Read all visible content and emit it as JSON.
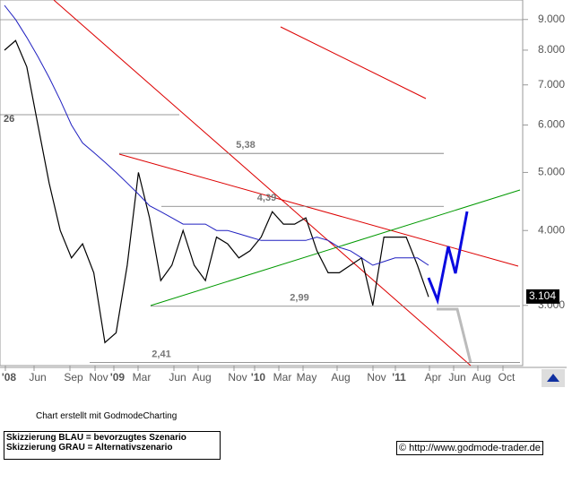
{
  "chart_data": {
    "type": "line",
    "x_labels": [
      "'08",
      "Jun",
      "Sep",
      "Nov",
      "'09",
      "Mar",
      "Jun",
      "Aug",
      "Nov",
      "'10",
      "Mar",
      "May",
      "Aug",
      "Nov",
      "'11",
      "Apr",
      "Jun",
      "Aug",
      "Oct"
    ],
    "series": [
      {
        "color": "#000000",
        "values": [
          8.0,
          8.3,
          7.5,
          6.0,
          4.8,
          4.0,
          3.6,
          3.8,
          3.4,
          2.6,
          2.7,
          3.5,
          5.0,
          4.2,
          3.3,
          3.5,
          4.0,
          3.5,
          3.3,
          3.9,
          3.8,
          3.6,
          3.7,
          3.9,
          4.3,
          4.1,
          4.1,
          4.2,
          3.7,
          3.4,
          3.4,
          3.5,
          3.6,
          3.0,
          3.9,
          3.9,
          3.9,
          3.5,
          3.1
        ]
      },
      {
        "color": "#2020c0",
        "values": [
          9.5,
          9.0,
          8.4,
          7.8,
          7.2,
          6.6,
          6.0,
          5.6,
          5.4,
          5.2,
          5.0,
          4.8,
          4.6,
          4.4,
          4.3,
          4.2,
          4.1,
          4.1,
          4.1,
          4.0,
          4.0,
          3.95,
          3.9,
          3.85,
          3.85,
          3.85,
          3.85,
          3.85,
          3.9,
          3.85,
          3.75,
          3.7,
          3.6,
          3.5,
          3.55,
          3.6,
          3.6,
          3.6,
          3.5
        ]
      }
    ],
    "log_scale": true,
    "ylim": [
      2.38,
      9.7
    ],
    "yticks": [
      {
        "value": 3,
        "label": "3.000"
      },
      {
        "value": 4,
        "label": "4.000"
      },
      {
        "value": 5,
        "label": "5.000"
      },
      {
        "value": 6,
        "label": "6.000"
      },
      {
        "value": 7,
        "label": "7.000"
      },
      {
        "value": 8,
        "label": "8.000"
      },
      {
        "value": 9,
        "label": "9.000"
      }
    ],
    "levels": [
      {
        "value": 5.38,
        "label": "5,38"
      },
      {
        "value": 4.39,
        "label": "4,39"
      },
      {
        "value": 2.99,
        "label": "2,99"
      },
      {
        "value": 2.41,
        "label": "2,41"
      }
    ],
    "cut_label": "26",
    "last_price": {
      "value": 3.104,
      "label": "3.104"
    }
  },
  "footer": {
    "credit": "Chart erstellt mit GodmodeCharting",
    "legend_blue": "Skizzierung BLAU = bevorzugtes Szenario",
    "legend_gray": "Skizzierung GRAU = Alternativszenario",
    "url": "© http://www.godmode-trader.de"
  }
}
